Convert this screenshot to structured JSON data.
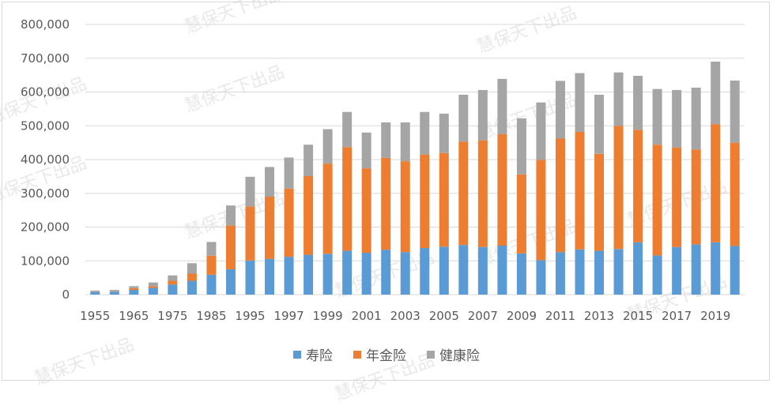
{
  "chart_data": {
    "type": "bar",
    "stacked": true,
    "categories": [
      "1955",
      "1960",
      "1965",
      "1970",
      "1975",
      "1980",
      "1985",
      "1990",
      "1995",
      "1996",
      "1997",
      "1998",
      "1999",
      "2000",
      "2001",
      "2002",
      "2003",
      "2004",
      "2005",
      "2006",
      "2007",
      "2008",
      "2009",
      "2010",
      "2011",
      "2012",
      "2013",
      "2014",
      "2015",
      "2016",
      "2017",
      "2018",
      "2019",
      "2020"
    ],
    "xtick_labels": [
      "1955",
      "1965",
      "1975",
      "1985",
      "1995",
      "1997",
      "1999",
      "2001",
      "2003",
      "2005",
      "2007",
      "2009",
      "2011",
      "2013",
      "2015",
      "2017",
      "2019"
    ],
    "series": [
      {
        "name": "寿险",
        "color": "#5b9bd5",
        "values": [
          8000,
          9000,
          14000,
          20000,
          30000,
          41000,
          59000,
          75000,
          101000,
          106000,
          112000,
          118000,
          121000,
          130000,
          124000,
          133000,
          126000,
          138000,
          142000,
          147000,
          141000,
          145000,
          122000,
          102000,
          126000,
          134000,
          130000,
          135000,
          155000,
          116000,
          141000,
          149000,
          155000,
          144000
        ]
      },
      {
        "name": "年金险",
        "color": "#ed7d31",
        "values": [
          1000,
          1000,
          5000,
          5000,
          11000,
          21000,
          56000,
          130000,
          160000,
          184000,
          202000,
          233000,
          267000,
          307000,
          250000,
          272000,
          269000,
          277000,
          277000,
          306000,
          316000,
          330000,
          234000,
          297000,
          336000,
          348000,
          287000,
          365000,
          333000,
          328000,
          295000,
          281000,
          350000,
          306000
        ]
      },
      {
        "name": "健康险",
        "color": "#a5a5a5",
        "values": [
          3000,
          4000,
          6000,
          11000,
          16000,
          31000,
          41000,
          59000,
          88000,
          88000,
          92000,
          93000,
          102000,
          104000,
          106000,
          105000,
          115000,
          126000,
          117000,
          139000,
          149000,
          164000,
          166000,
          170000,
          171000,
          174000,
          175000,
          158000,
          160000,
          165000,
          170000,
          183000,
          185000,
          184000
        ]
      }
    ],
    "yticks": [
      "0",
      "100,000",
      "200,000",
      "300,000",
      "400,000",
      "500,000",
      "600,000",
      "700,000",
      "800,000"
    ],
    "ylim": [
      0,
      800000
    ],
    "grid": true,
    "legend_position": "bottom",
    "title": "",
    "xlabel": "",
    "ylabel": ""
  },
  "watermark": "慧保天下出品"
}
